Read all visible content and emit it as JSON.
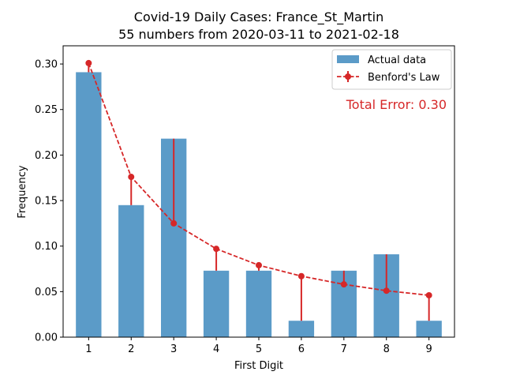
{
  "chart_data": {
    "type": "bar",
    "title": "Covid-19 Daily Cases: France_St_Martin",
    "subtitle": "55 numbers from 2020-03-11 to 2021-02-18",
    "xlabel": "First Digit",
    "ylabel": "Frequency",
    "categories": [
      "1",
      "2",
      "3",
      "4",
      "5",
      "6",
      "7",
      "8",
      "9"
    ],
    "ylim": [
      0,
      0.32
    ],
    "yticks": [
      "0.00",
      "0.05",
      "0.10",
      "0.15",
      "0.20",
      "0.25",
      "0.30"
    ],
    "series": [
      {
        "name": "Actual data",
        "kind": "bar",
        "color": "#5b9bc8",
        "values": [
          0.291,
          0.145,
          0.218,
          0.073,
          0.073,
          0.018,
          0.073,
          0.091,
          0.018
        ]
      },
      {
        "name": "Benford's Law",
        "kind": "line-dashed-markers",
        "color": "#d62728",
        "values": [
          0.301,
          0.176,
          0.125,
          0.097,
          0.079,
          0.067,
          0.058,
          0.051,
          0.046
        ]
      }
    ],
    "annotation": "Total Error: 0.30",
    "legend_position": "top-right",
    "grid": false
  }
}
